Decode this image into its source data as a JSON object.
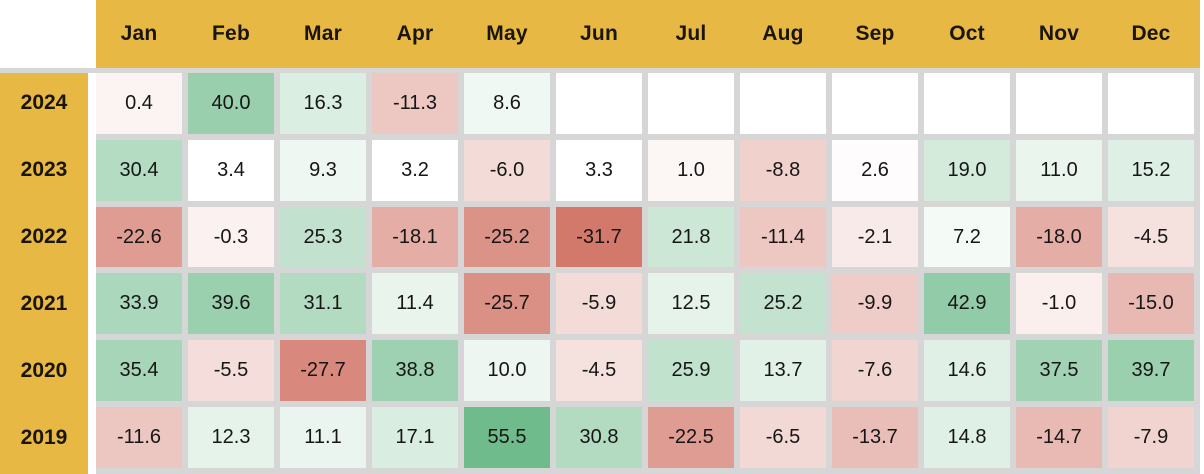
{
  "colors": {
    "gold": "#E7B843",
    "header_text": "#1A1509",
    "cell_text": "#161616",
    "gap_gray": "#D6D6D6",
    "page_background": "#FFFFFF"
  },
  "chart_data": {
    "type": "heatmap",
    "title": "",
    "columns": [
      "Jan",
      "Feb",
      "Mar",
      "Apr",
      "May",
      "Jun",
      "Jul",
      "Aug",
      "Sep",
      "Oct",
      "Nov",
      "Dec"
    ],
    "rows": [
      "2024",
      "2023",
      "2022",
      "2021",
      "2020",
      "2019"
    ],
    "series": [
      {
        "name": "2024",
        "values": [
          0.4,
          40.0,
          16.3,
          -11.3,
          8.6,
          null,
          null,
          null,
          null,
          null,
          null,
          null
        ]
      },
      {
        "name": "2023",
        "values": [
          30.4,
          3.4,
          9.3,
          3.2,
          -6.0,
          3.3,
          1.0,
          -8.8,
          2.6,
          19.0,
          11.0,
          15.2
        ]
      },
      {
        "name": "2022",
        "values": [
          -22.6,
          -0.3,
          25.3,
          -18.1,
          -25.2,
          -31.7,
          21.8,
          -11.4,
          -2.1,
          7.2,
          -18.0,
          -4.5
        ]
      },
      {
        "name": "2021",
        "values": [
          33.9,
          39.6,
          31.1,
          11.4,
          -25.7,
          -5.9,
          12.5,
          25.2,
          -9.9,
          42.9,
          -1.0,
          -15.0
        ]
      },
      {
        "name": "2020",
        "values": [
          35.4,
          -5.5,
          -27.7,
          38.8,
          10.0,
          -4.5,
          25.9,
          13.7,
          -7.6,
          14.6,
          37.5,
          39.7
        ]
      },
      {
        "name": "2019",
        "values": [
          -11.6,
          12.3,
          11.1,
          17.1,
          55.5,
          30.8,
          -22.5,
          -6.5,
          -13.7,
          14.8,
          -14.7,
          -7.9
        ]
      }
    ],
    "colormap": {
      "min": -31.7,
      "mid": 3.3,
      "max": 55.5,
      "negative_color": "#D3796C",
      "positive_color": "#6FBB8C",
      "neutral_color": "#FFFFFF",
      "empty_cell_color": "#FFFFFF"
    },
    "value_decimals": 1,
    "legend": "none",
    "grid": "gap-lines"
  }
}
